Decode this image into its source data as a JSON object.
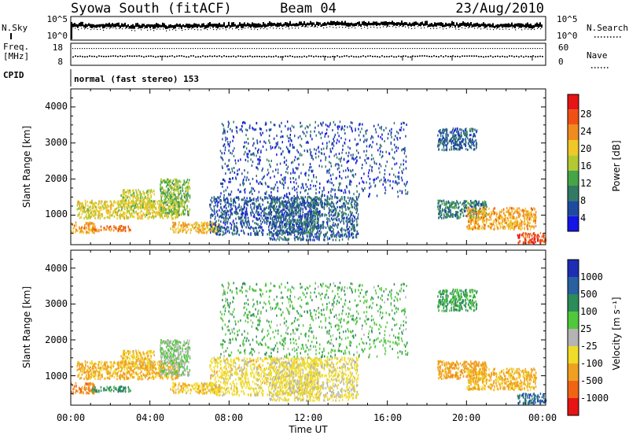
{
  "header": {
    "station": "Syowa South (fitACF)",
    "beam": "Beam 04",
    "date": "23/Aug/2010"
  },
  "noise_panel": {
    "left_label": "N.Sky",
    "right_label": "N.Search",
    "left_ticks": [
      "10^5",
      "10^0"
    ],
    "right_ticks": [
      "10^5",
      "10^0"
    ]
  },
  "freq_panel": {
    "left_label_1": "Freq.",
    "left_label_2": "[MHz]",
    "right_label": "Nave",
    "left_ticks": [
      "18",
      "8"
    ],
    "right_ticks": [
      "60",
      "0"
    ]
  },
  "cpid": {
    "label": "CPID",
    "value": "normal (fast stereo) 153"
  },
  "x_axis": {
    "label": "Time UT",
    "ticks": [
      "00:00",
      "04:00",
      "08:00",
      "12:00",
      "16:00",
      "20:00",
      "00:00"
    ]
  },
  "power_panel": {
    "ylabel": "Slant Range [km]",
    "yticks": [
      "1000",
      "2000",
      "3000",
      "4000"
    ],
    "colorbar_label": "Power [dB]",
    "colorbar_ticks": [
      "28",
      "24",
      "20",
      "16",
      "12",
      "8",
      "4"
    ]
  },
  "velocity_panel": {
    "ylabel": "Slant Range [km]",
    "yticks": [
      "1000",
      "2000",
      "3000",
      "4000"
    ],
    "colorbar_label": "Velocity [m s⁻¹]",
    "colorbar_ticks": [
      "1000",
      "500",
      "100",
      "25",
      "-25",
      "-100",
      "-500",
      "-1000"
    ]
  },
  "colors": {
    "power_scale": [
      "#1414e6",
      "#1e4ba0",
      "#327a64",
      "#46a546",
      "#b4c832",
      "#f0c828",
      "#f08c1e",
      "#f05014",
      "#e61414"
    ],
    "velocity_scale": [
      "#1e2db4",
      "#2860a0",
      "#2c8c5a",
      "#50c83c",
      "#b4b4b4",
      "#f0dc28",
      "#f0a020",
      "#f06414",
      "#e61414"
    ]
  },
  "chart_data": {
    "type": "heatmap",
    "x_range_hours_ut": [
      0,
      24
    ],
    "y_range_km": [
      180,
      4500
    ],
    "power_range_db": [
      0,
      32
    ],
    "velocity_range_ms": [
      -1250,
      1250
    ],
    "scatter_regions": [
      {
        "t_start_h": 0.0,
        "t_end_h": 1.2,
        "r_min_km": 500,
        "r_max_km": 800,
        "power_db": 22,
        "velocity_ms": -500
      },
      {
        "t_start_h": 1.0,
        "t_end_h": 3.0,
        "r_min_km": 550,
        "r_max_km": 700,
        "power_db": 24,
        "velocity_ms": 300
      },
      {
        "t_start_h": 0.3,
        "t_end_h": 5.5,
        "r_min_km": 900,
        "r_max_km": 1400,
        "power_db": 18,
        "velocity_ms": -150
      },
      {
        "t_start_h": 2.5,
        "t_end_h": 4.2,
        "r_min_km": 1200,
        "r_max_km": 1700,
        "power_db": 17,
        "velocity_ms": -100
      },
      {
        "t_start_h": 4.5,
        "t_end_h": 6.0,
        "r_min_km": 1000,
        "r_max_km": 2000,
        "power_db": 14,
        "velocity_ms": 25
      },
      {
        "t_start_h": 5.0,
        "t_end_h": 7.5,
        "r_min_km": 500,
        "r_max_km": 800,
        "power_db": 21,
        "velocity_ms": -90
      },
      {
        "t_start_h": 7.0,
        "t_end_h": 12.5,
        "r_min_km": 450,
        "r_max_km": 1500,
        "power_db": 6,
        "velocity_ms": -60
      },
      {
        "t_start_h": 7.5,
        "t_end_h": 17.0,
        "r_min_km": 1500,
        "r_max_km": 3600,
        "power_db": 5,
        "velocity_ms": 80
      },
      {
        "t_start_h": 10.0,
        "t_end_h": 14.5,
        "r_min_km": 300,
        "r_max_km": 1500,
        "power_db": 7,
        "velocity_ms": -40
      },
      {
        "t_start_h": 18.5,
        "t_end_h": 20.5,
        "r_min_km": 2800,
        "r_max_km": 3400,
        "power_db": 7,
        "velocity_ms": 120
      },
      {
        "t_start_h": 18.5,
        "t_end_h": 21.0,
        "r_min_km": 900,
        "r_max_km": 1400,
        "power_db": 9,
        "velocity_ms": -300
      },
      {
        "t_start_h": 20.0,
        "t_end_h": 23.5,
        "r_min_km": 600,
        "r_max_km": 1200,
        "power_db": 22,
        "velocity_ms": -150
      },
      {
        "t_start_h": 22.5,
        "t_end_h": 24.0,
        "r_min_km": 200,
        "r_max_km": 500,
        "power_db": 27,
        "velocity_ms": 600
      }
    ]
  }
}
